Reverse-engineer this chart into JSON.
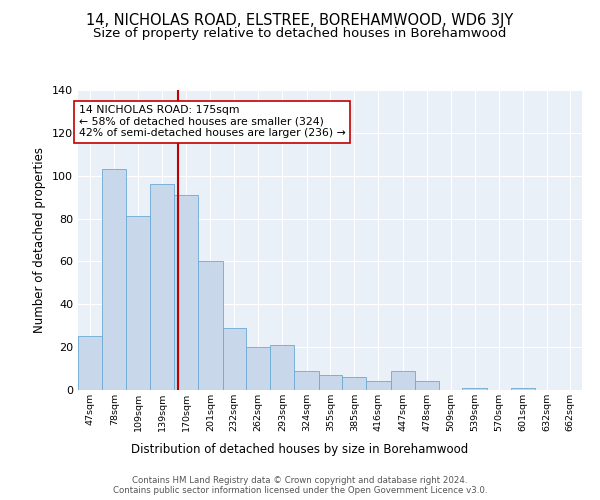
{
  "title": "14, NICHOLAS ROAD, ELSTREE, BOREHAMWOOD, WD6 3JY",
  "subtitle": "Size of property relative to detached houses in Borehamwood",
  "xlabel": "Distribution of detached houses by size in Borehamwood",
  "ylabel": "Number of detached properties",
  "bar_color": "#c8d8ea",
  "bar_edge_color": "#6aaad4",
  "background_color": "#eaf0f8",
  "grid_color": "white",
  "annotation_text": "14 NICHOLAS ROAD: 175sqm\n← 58% of detached houses are smaller (324)\n42% of semi-detached houses are larger (236) →",
  "vline_x": 175,
  "vline_color": "#c00000",
  "categories": [
    "47sqm",
    "78sqm",
    "109sqm",
    "139sqm",
    "170sqm",
    "201sqm",
    "232sqm",
    "262sqm",
    "293sqm",
    "324sqm",
    "355sqm",
    "385sqm",
    "416sqm",
    "447sqm",
    "478sqm",
    "509sqm",
    "539sqm",
    "570sqm",
    "601sqm",
    "632sqm",
    "662sqm"
  ],
  "bin_edges": [
    47,
    78,
    109,
    139,
    170,
    201,
    232,
    262,
    293,
    324,
    355,
    385,
    416,
    447,
    478,
    509,
    539,
    570,
    601,
    632,
    662
  ],
  "values": [
    25,
    103,
    81,
    96,
    91,
    60,
    29,
    20,
    21,
    9,
    7,
    6,
    4,
    9,
    4,
    0,
    1,
    0,
    1,
    0,
    0
  ],
  "ylim": [
    0,
    140
  ],
  "yticks": [
    0,
    20,
    40,
    60,
    80,
    100,
    120,
    140
  ],
  "footer": "Contains HM Land Registry data © Crown copyright and database right 2024.\nContains public sector information licensed under the Open Government Licence v3.0.",
  "title_fontsize": 10.5,
  "subtitle_fontsize": 9.5
}
